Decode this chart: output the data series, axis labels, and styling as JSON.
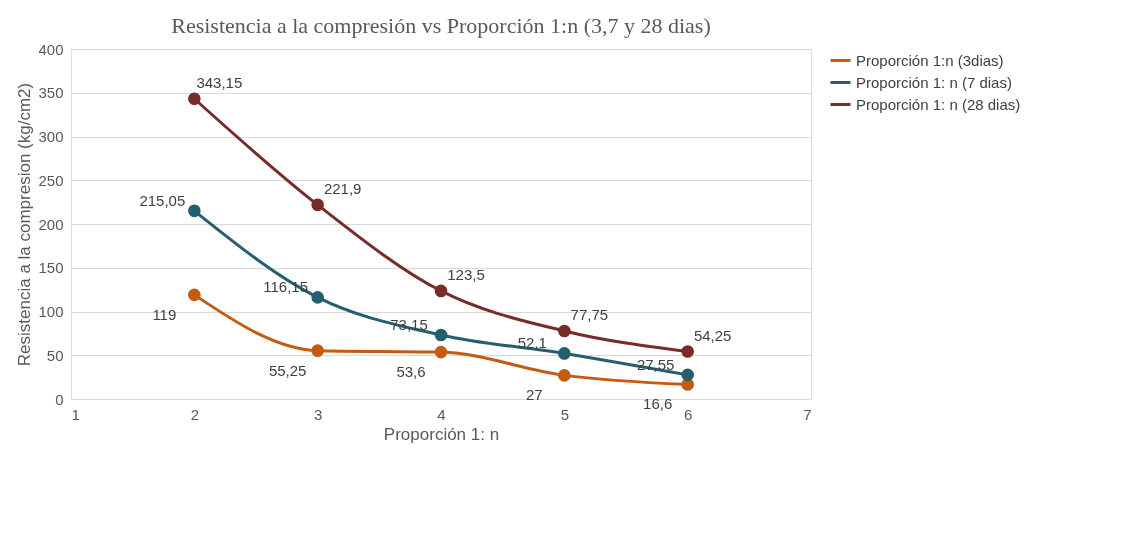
{
  "chart_data": {
    "type": "line",
    "title": "Resistencia a la compresión vs Proporción 1:n (3,7 y 28 dias)",
    "xlabel": "Proporción 1: n",
    "ylabel": "Resistencia a la compresion (kg/cm2)",
    "x": [
      2,
      3,
      4,
      5,
      6
    ],
    "series": [
      {
        "name": "Proporción 1:n (3dias)",
        "color": "#c55a11",
        "values": [
          119,
          55.25,
          53.6,
          27,
          16.6
        ],
        "value_labels": [
          "119",
          "55,25",
          "53,6",
          "27",
          "16,6"
        ]
      },
      {
        "name": "Proporción 1: n (7 dias)",
        "color": "#255e6e",
        "values": [
          215.05,
          116.15,
          73.15,
          52.1,
          27.55
        ],
        "value_labels": [
          "215,05",
          "116,15",
          "73,15",
          "52,1",
          "27,55"
        ]
      },
      {
        "name": "Proporción 1: n (28 dias)",
        "color": "#772c2a",
        "values": [
          343.15,
          221.9,
          123.5,
          77.75,
          54.25
        ],
        "value_labels": [
          "343,15",
          "221,9",
          "123,5",
          "77,75",
          "54,25"
        ]
      }
    ],
    "xlim": [
      1,
      7
    ],
    "xticks": [
      1,
      2,
      3,
      4,
      5,
      6,
      7
    ],
    "ylim": [
      0,
      400
    ],
    "yticks": [
      0,
      50,
      100,
      150,
      200,
      250,
      300,
      350,
      400
    ],
    "grid": "y",
    "legend": "right",
    "marker": "circle",
    "line_style": "solid"
  }
}
